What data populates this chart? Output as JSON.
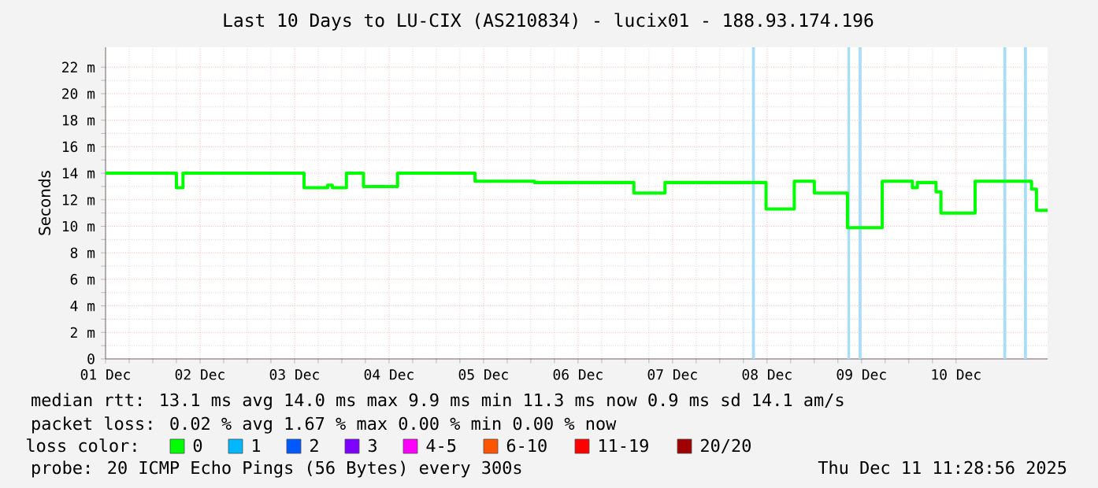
{
  "chart_data": {
    "type": "step",
    "title": "Last 10 Days to LU-CIX (AS210834) - lucix01 - 188.93.174.196",
    "ylabel": "Seconds",
    "x": [
      "2025-12-01T00:00",
      "2025-12-01T18:00",
      "2025-12-01T19:40",
      "2025-12-03T02:25",
      "2025-12-03T08:25",
      "2025-12-03T09:35",
      "2025-12-03T13:10",
      "2025-12-03T17:30",
      "2025-12-04T02:10",
      "2025-12-04T21:50",
      "2025-12-05T12:55",
      "2025-12-06T14:10",
      "2025-12-06T22:05",
      "2025-12-07T23:45",
      "2025-12-08T06:55",
      "2025-12-08T12:00",
      "2025-12-08T20:25",
      "2025-12-09T05:15",
      "2025-12-09T12:55",
      "2025-12-09T14:10",
      "2025-12-09T18:55",
      "2025-12-09T20:10",
      "2025-12-10T04:50",
      "2025-12-10T19:10",
      "2025-12-10T20:25",
      "2025-12-10T23:15"
    ],
    "series": [
      {
        "name": "0",
        "color": "#00ff00",
        "values": [
          14.0,
          12.9,
          14.0,
          12.9,
          13.1,
          12.9,
          14.0,
          13.0,
          14.0,
          13.4,
          13.3,
          12.5,
          13.3,
          11.3,
          13.4,
          12.5,
          9.9,
          13.4,
          12.9,
          13.3,
          12.6,
          11.0,
          13.4,
          12.8,
          11.2,
          11.2
        ]
      },
      {
        "name": "1",
        "color": "#00b8ff",
        "values": [
          null,
          null,
          null,
          null,
          null,
          null,
          null,
          null,
          null,
          null,
          null,
          null,
          null,
          null,
          null,
          null,
          null,
          null,
          null,
          null,
          null,
          null,
          null,
          null,
          null,
          null
        ]
      },
      {
        "name": "2",
        "color": "#0059ff",
        "values": [
          null,
          null,
          null,
          null,
          null,
          null,
          null,
          null,
          null,
          null,
          null,
          null,
          null,
          null,
          null,
          null,
          null,
          null,
          null,
          null,
          null,
          null,
          null,
          null,
          null,
          null
        ]
      },
      {
        "name": "3",
        "color": "#7e00ff",
        "values": [
          null,
          null,
          null,
          null,
          null,
          null,
          null,
          null,
          null,
          null,
          null,
          null,
          null,
          null,
          null,
          null,
          null,
          null,
          null,
          null,
          null,
          null,
          null,
          null,
          null,
          null
        ]
      },
      {
        "name": "4-5",
        "color": "#ff00ff",
        "values": [
          null,
          null,
          null,
          null,
          null,
          null,
          null,
          null,
          null,
          null,
          null,
          null,
          null,
          null,
          null,
          null,
          null,
          null,
          null,
          null,
          null,
          null,
          null,
          null,
          null,
          null
        ]
      },
      {
        "name": "6-10",
        "color": "#ff5500",
        "values": [
          null,
          null,
          null,
          null,
          null,
          null,
          null,
          null,
          null,
          null,
          null,
          null,
          null,
          null,
          null,
          null,
          null,
          null,
          null,
          null,
          null,
          null,
          null,
          null,
          null,
          null
        ]
      },
      {
        "name": "11-19",
        "color": "#ff0000",
        "values": [
          null,
          null,
          null,
          null,
          null,
          null,
          null,
          null,
          null,
          null,
          null,
          null,
          null,
          null,
          null,
          null,
          null,
          null,
          null,
          null,
          null,
          null,
          null,
          null,
          null,
          null
        ]
      },
      {
        "name": "20/20",
        "color": "#a10000",
        "values": [
          null,
          null,
          null,
          null,
          null,
          null,
          null,
          null,
          null,
          null,
          null,
          null,
          null,
          null,
          null,
          null,
          null,
          null,
          null,
          null,
          null,
          null,
          null,
          null,
          null,
          null
        ]
      }
    ],
    "legend": "bottom",
    "legend_title": "loss color:",
    "xlim": [
      "2025-12-01T00:00",
      "2025-12-10T23:15"
    ],
    "ylim": [
      0,
      23.5
    ],
    "xticks": [
      {
        "value": "2025-12-01",
        "label": "01 Dec"
      },
      {
        "value": "2025-12-02",
        "label": "02 Dec"
      },
      {
        "value": "2025-12-03",
        "label": "03 Dec"
      },
      {
        "value": "2025-12-04",
        "label": "04 Dec"
      },
      {
        "value": "2025-12-05",
        "label": "05 Dec"
      },
      {
        "value": "2025-12-06",
        "label": "06 Dec"
      },
      {
        "value": "2025-12-07",
        "label": "07 Dec"
      },
      {
        "value": "2025-12-08",
        "label": "08 Dec"
      },
      {
        "value": "2025-12-09",
        "label": "09 Dec"
      },
      {
        "value": "2025-12-10",
        "label": "10 Dec"
      }
    ],
    "yticks": [
      0,
      {
        "value": 2,
        "label": "2 m"
      },
      {
        "value": 4,
        "label": "4 m"
      },
      {
        "value": 6,
        "label": "6 m"
      },
      {
        "value": 8,
        "label": "8 m"
      },
      {
        "value": 10,
        "label": "10 m"
      },
      {
        "value": 12,
        "label": "12 m"
      },
      {
        "value": 14,
        "label": "14 m"
      },
      {
        "value": 16,
        "label": "16 m"
      },
      {
        "value": 18,
        "label": "18 m"
      },
      {
        "value": 20,
        "label": "20 m"
      },
      {
        "value": 22,
        "label": "22 m"
      }
    ],
    "grid": true,
    "bands": [
      {
        "axis": "x",
        "from": "2025-12-07T20:10",
        "to": "2025-12-07T20:55",
        "color": "#a8ddf5"
      },
      {
        "axis": "x",
        "from": "2025-12-08T20:25",
        "to": "2025-12-08T21:05",
        "color": "#a8ddf5"
      },
      {
        "axis": "x",
        "from": "2025-12-08T23:15",
        "to": "2025-12-09T00:00",
        "color": "#a8ddf5"
      },
      {
        "axis": "x",
        "from": "2025-12-10T12:00",
        "to": "2025-12-10T12:45",
        "color": "#a8ddf5"
      },
      {
        "axis": "x",
        "from": "2025-12-10T17:15",
        "to": "2025-12-10T18:00",
        "color": "#a8ddf5"
      }
    ],
    "annotations": [
      "median rtt: 13.1 ms avg 14.0 ms max 9.9 ms min 11.3 ms now 0.9 ms sd 14.1 am/s",
      "packet loss: 0.02 % avg 1.67 % max 0.00 % min 0.00 % now",
      "probe: 20 ICMP Echo Pings (56 Bytes) every 300s",
      "Thu Dec 11 11:28:56 2025"
    ]
  }
}
